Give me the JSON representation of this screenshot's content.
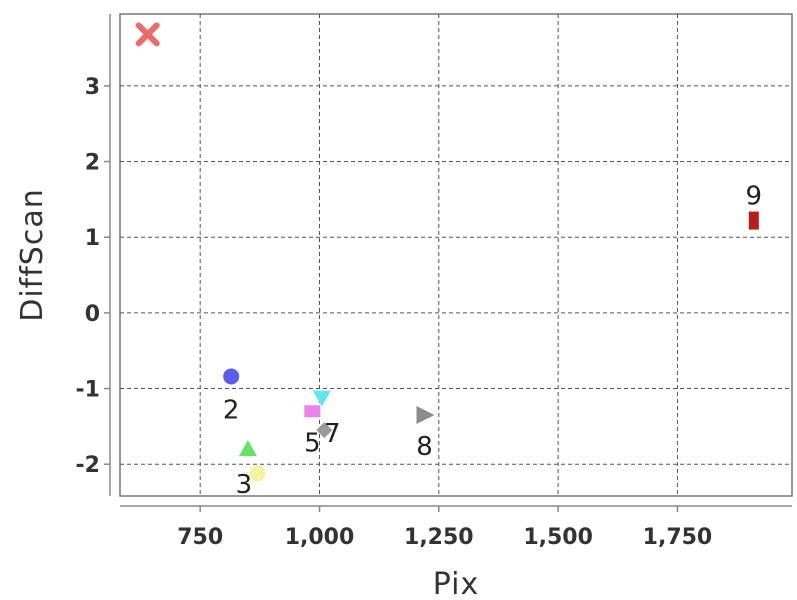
{
  "chart_data": {
    "type": "scatter",
    "title": "",
    "xlabel": "Pix",
    "ylabel": "DiffScan",
    "xlim": [
      582,
      1990
    ],
    "ylim": [
      -2.42,
      3.95
    ],
    "x_ticks": [
      750,
      1000,
      1250,
      1500,
      1750
    ],
    "x_tick_labels": [
      "750",
      "1,000",
      "1,250",
      "1,500",
      "1,750"
    ],
    "y_ticks": [
      -2,
      -1,
      0,
      1,
      2,
      3
    ],
    "y_tick_labels": [
      "-2",
      "-1",
      "0",
      "1",
      "2",
      "3"
    ],
    "grid": true,
    "legend": "none",
    "points": [
      {
        "label": "",
        "x": 640,
        "y": 3.68,
        "marker": "x",
        "color": "#ec6b6b"
      },
      {
        "label": "2",
        "x": 815,
        "y": -0.84,
        "marker": "circle",
        "color": "#5a5ef0"
      },
      {
        "label": "3",
        "x": 850,
        "y": -1.8,
        "marker": "triangle-up",
        "color": "#66e066"
      },
      {
        "label": "",
        "x": 870,
        "y": -2.12,
        "marker": "circle",
        "color": "#f3f3a0"
      },
      {
        "label": "5",
        "x": 985,
        "y": -1.3,
        "marker": "square",
        "color": "#ea82ea"
      },
      {
        "label": "",
        "x": 1005,
        "y": -1.12,
        "marker": "triangle-down",
        "color": "#5fe6f0"
      },
      {
        "label": "7",
        "x": 1010,
        "y": -1.55,
        "marker": "diamond",
        "color": "#9a9a9a"
      },
      {
        "label": "8",
        "x": 1220,
        "y": -1.35,
        "marker": "triangle-right",
        "color": "#8c8c8c"
      },
      {
        "label": "9",
        "x": 1910,
        "y": 1.22,
        "marker": "rect",
        "color": "#b81c1c"
      }
    ]
  }
}
